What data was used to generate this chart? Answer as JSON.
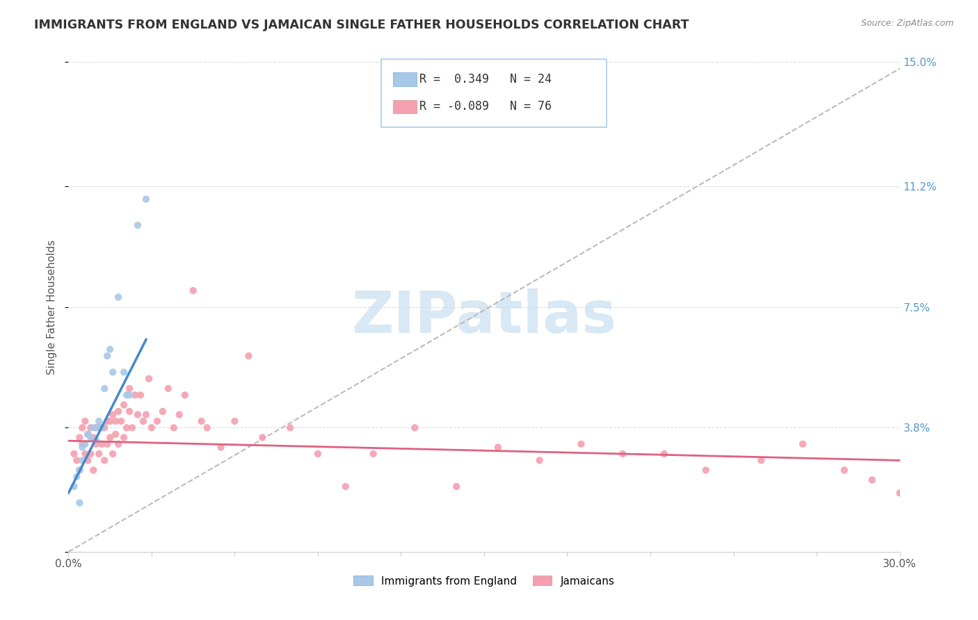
{
  "title": "IMMIGRANTS FROM ENGLAND VS JAMAICAN SINGLE FATHER HOUSEHOLDS CORRELATION CHART",
  "source": "Source: ZipAtlas.com",
  "ylabel": "Single Father Households",
  "xlim": [
    0.0,
    0.3
  ],
  "ylim": [
    0.0,
    0.15
  ],
  "blue_R": 0.349,
  "blue_N": 24,
  "pink_R": -0.089,
  "pink_N": 76,
  "blue_color": "#a8c8e8",
  "pink_color": "#f4a0b0",
  "blue_line_color": "#4488cc",
  "pink_line_color": "#e06080",
  "dashed_line_color": "#bbbbbb",
  "watermark_text": "ZIPatlas",
  "watermark_color": "#c8dff0",
  "ytick_positions": [
    0.0,
    0.038,
    0.075,
    0.112,
    0.15
  ],
  "ytick_labels": [
    "",
    "3.8%",
    "7.5%",
    "11.2%",
    "15.0%"
  ],
  "xtick_positions": [
    0.0,
    0.03,
    0.06,
    0.09,
    0.12,
    0.15,
    0.18,
    0.21,
    0.24,
    0.27,
    0.3
  ],
  "blue_scatter_x": [
    0.002,
    0.003,
    0.004,
    0.004,
    0.005,
    0.005,
    0.006,
    0.007,
    0.008,
    0.009,
    0.01,
    0.01,
    0.011,
    0.012,
    0.013,
    0.014,
    0.015,
    0.016,
    0.018,
    0.02,
    0.021,
    0.022,
    0.025,
    0.028
  ],
  "blue_scatter_y": [
    0.02,
    0.023,
    0.025,
    0.015,
    0.028,
    0.032,
    0.033,
    0.036,
    0.035,
    0.038,
    0.038,
    0.034,
    0.04,
    0.038,
    0.05,
    0.06,
    0.062,
    0.055,
    0.078,
    0.055,
    0.048,
    0.048,
    0.1,
    0.108
  ],
  "blue_line_x0": 0.0,
  "blue_line_y0": 0.018,
  "blue_line_x1": 0.028,
  "blue_line_y1": 0.065,
  "pink_line_x0": 0.0,
  "pink_line_y0": 0.034,
  "pink_line_x1": 0.3,
  "pink_line_y1": 0.028,
  "dashed_line_x0": 0.0,
  "dashed_line_y0": 0.0,
  "dashed_line_x1": 0.3,
  "dashed_line_y1": 0.148,
  "pink_scatter_x": [
    0.002,
    0.003,
    0.004,
    0.004,
    0.005,
    0.005,
    0.006,
    0.006,
    0.007,
    0.007,
    0.008,
    0.008,
    0.009,
    0.009,
    0.01,
    0.01,
    0.011,
    0.011,
    0.012,
    0.012,
    0.013,
    0.013,
    0.014,
    0.014,
    0.015,
    0.015,
    0.016,
    0.016,
    0.017,
    0.017,
    0.018,
    0.018,
    0.019,
    0.02,
    0.02,
    0.021,
    0.022,
    0.022,
    0.023,
    0.024,
    0.025,
    0.026,
    0.027,
    0.028,
    0.029,
    0.03,
    0.032,
    0.034,
    0.036,
    0.038,
    0.04,
    0.042,
    0.045,
    0.048,
    0.05,
    0.055,
    0.06,
    0.065,
    0.07,
    0.08,
    0.09,
    0.1,
    0.11,
    0.125,
    0.14,
    0.155,
    0.17,
    0.185,
    0.2,
    0.215,
    0.23,
    0.25,
    0.265,
    0.28,
    0.29,
    0.3
  ],
  "pink_scatter_y": [
    0.03,
    0.028,
    0.035,
    0.025,
    0.033,
    0.038,
    0.03,
    0.04,
    0.028,
    0.036,
    0.03,
    0.038,
    0.025,
    0.035,
    0.033,
    0.038,
    0.03,
    0.038,
    0.033,
    0.038,
    0.028,
    0.038,
    0.033,
    0.04,
    0.035,
    0.04,
    0.03,
    0.042,
    0.036,
    0.04,
    0.033,
    0.043,
    0.04,
    0.035,
    0.045,
    0.038,
    0.043,
    0.05,
    0.038,
    0.048,
    0.042,
    0.048,
    0.04,
    0.042,
    0.053,
    0.038,
    0.04,
    0.043,
    0.05,
    0.038,
    0.042,
    0.048,
    0.08,
    0.04,
    0.038,
    0.032,
    0.04,
    0.06,
    0.035,
    0.038,
    0.03,
    0.02,
    0.03,
    0.038,
    0.02,
    0.032,
    0.028,
    0.033,
    0.03,
    0.03,
    0.025,
    0.028,
    0.033,
    0.025,
    0.022,
    0.018
  ]
}
